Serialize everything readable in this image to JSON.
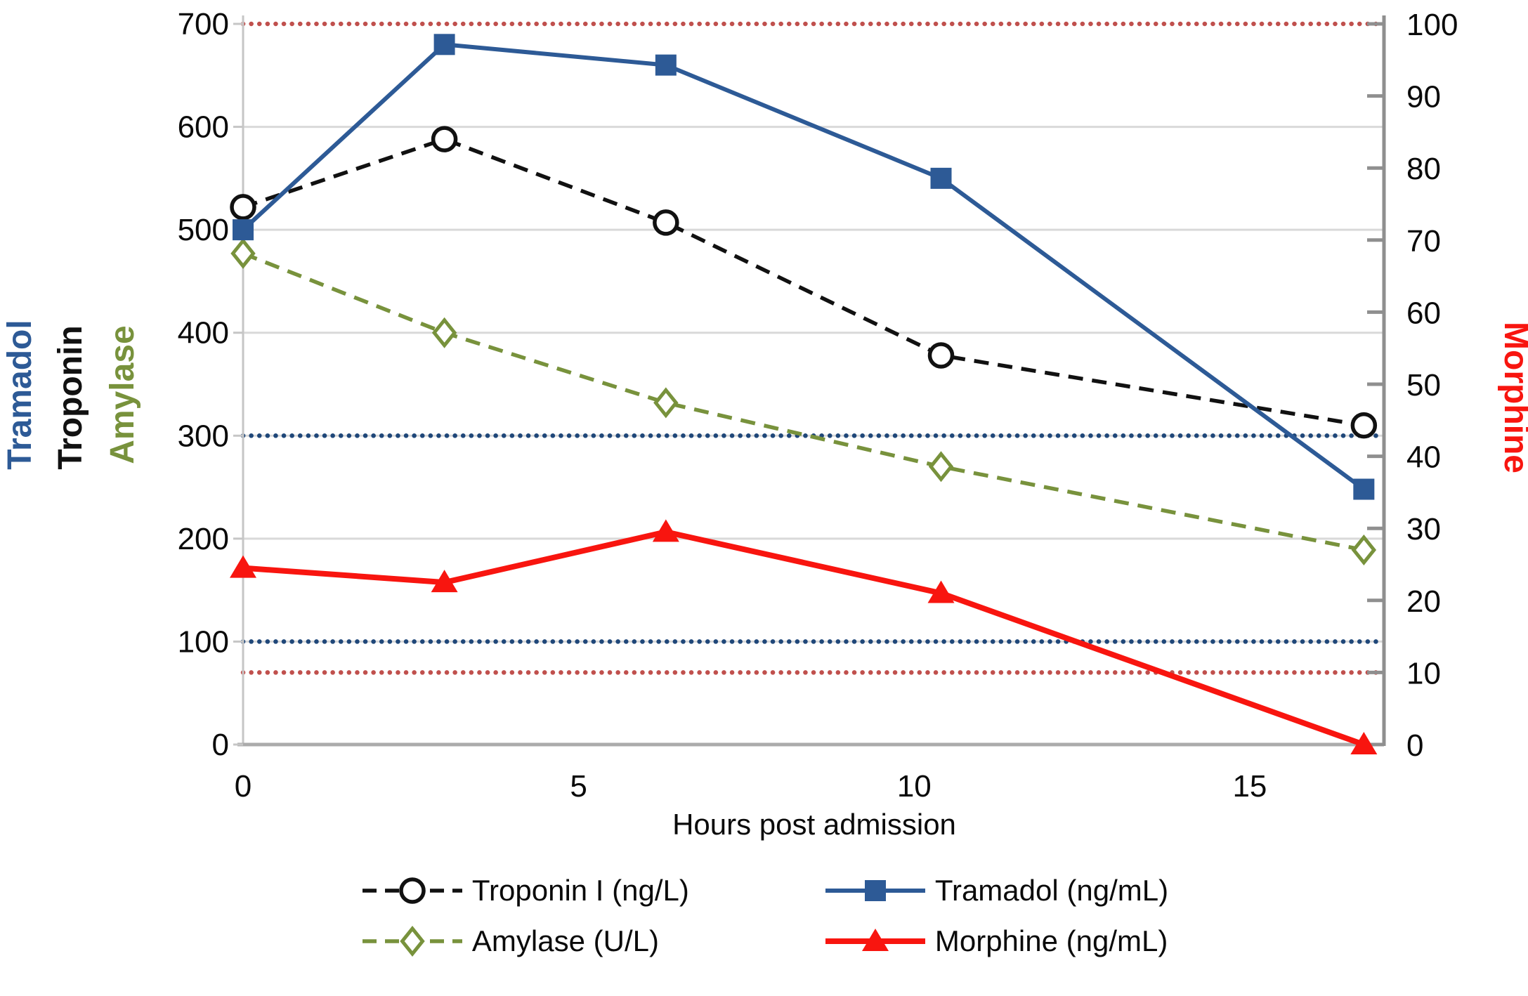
{
  "chart_data": {
    "type": "line",
    "title": "",
    "xlabel": "Hours post admission",
    "x": [
      0,
      3,
      6.3,
      10.4,
      16.7
    ],
    "x_ticks": [
      "0",
      "5",
      "10",
      "15"
    ],
    "x_tick_values": [
      0,
      5,
      10,
      15
    ],
    "x_range": [
      0,
      17
    ],
    "grid": "horizontal",
    "left_axis": {
      "labels": [
        "Tramadol",
        "Troponin",
        "Amylase"
      ],
      "colors": [
        "#2D5A96",
        "#111111",
        "#78923C"
      ],
      "range": [
        0,
        700
      ],
      "ticks": [
        "700",
        "600",
        "500",
        "400",
        "300",
        "200",
        "100",
        "0"
      ],
      "tick_values": [
        700,
        600,
        500,
        400,
        300,
        200,
        100,
        0
      ]
    },
    "right_axis": {
      "label": "Morphine",
      "color": "#F8150F",
      "range": [
        0,
        100
      ],
      "ticks": [
        "100",
        "90",
        "80",
        "70",
        "60",
        "50",
        "40",
        "30",
        "20",
        "10",
        "0"
      ],
      "tick_values": [
        100,
        90,
        80,
        70,
        60,
        50,
        40,
        30,
        20,
        10,
        0
      ]
    },
    "series": [
      {
        "name": "Troponin I (ng/L)",
        "axis": "left",
        "values": [
          522,
          588,
          507,
          378,
          310
        ],
        "color": "#111111",
        "marker": "circle",
        "line": "dashed"
      },
      {
        "name": "Tramadol (ng/mL)",
        "axis": "left",
        "values": [
          500,
          680,
          660,
          550,
          248
        ],
        "color": "#2D5A96",
        "marker": "square",
        "line": "solid"
      },
      {
        "name": "Amylase (U/L)",
        "axis": "left",
        "values": [
          477,
          400,
          332,
          270,
          189
        ],
        "color": "#78923C",
        "marker": "diamond",
        "line": "dashed"
      },
      {
        "name": "Morphine (ng/mL)",
        "axis": "right",
        "values": [
          24.5,
          22.5,
          29.5,
          21,
          0
        ],
        "color": "#F8150F",
        "marker": "triangle",
        "line": "solid"
      }
    ],
    "reference_lines": [
      {
        "axis": "right",
        "value": 100,
        "color": "#C0504D",
        "style": "dotted"
      },
      {
        "axis": "right",
        "value": 10,
        "color": "#C0504D",
        "style": "dotted"
      },
      {
        "axis": "left",
        "value": 300,
        "color": "#1F4779",
        "style": "dotted"
      },
      {
        "axis": "left",
        "value": 100,
        "color": "#1F4779",
        "style": "dotted"
      }
    ],
    "legend": {
      "position": "bottom",
      "order": [
        0,
        1,
        2,
        3
      ]
    },
    "colors": {
      "gridline": "#D9D9D9",
      "left_axis_line": "#C6C6C6",
      "bottom_axis_line": "#ABABAB",
      "right_axis_line": "#8F8F8F"
    }
  }
}
